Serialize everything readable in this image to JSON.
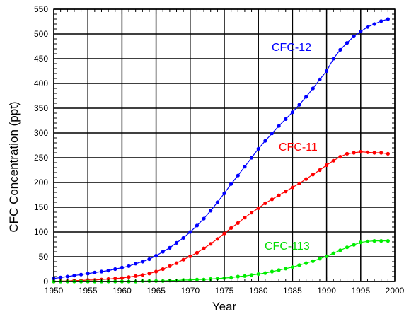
{
  "chart_data": {
    "type": "line",
    "title": "",
    "xlabel": "Year",
    "ylabel": "CFC Concentration (ppt)",
    "xlim": [
      1950,
      2000
    ],
    "ylim": [
      0,
      550
    ],
    "x_ticks": [
      "1950",
      "1955",
      "1960",
      "1965",
      "1970",
      "1975",
      "1980",
      "1985",
      "1990",
      "1995",
      "2000"
    ],
    "y_ticks": [
      "0",
      "50",
      "100",
      "150",
      "200",
      "250",
      "300",
      "350",
      "400",
      "450",
      "500",
      "550"
    ],
    "grid": true,
    "legend": "inline labels",
    "series": [
      {
        "name": "CFC-12",
        "color": "#0000ff",
        "x": [
          1950,
          1951,
          1952,
          1953,
          1954,
          1955,
          1956,
          1957,
          1958,
          1959,
          1960,
          1961,
          1962,
          1963,
          1964,
          1965,
          1966,
          1967,
          1968,
          1969,
          1970,
          1971,
          1972,
          1973,
          1974,
          1975,
          1976,
          1977,
          1978,
          1979,
          1980,
          1981,
          1982,
          1983,
          1984,
          1985,
          1986,
          1987,
          1988,
          1989,
          1990,
          1991,
          1992,
          1993,
          1994,
          1995,
          1996,
          1997,
          1998,
          1999
        ],
        "values": [
          6,
          8,
          10,
          12,
          14,
          16,
          18,
          20,
          22,
          25,
          28,
          31,
          36,
          40,
          45,
          52,
          60,
          68,
          78,
          88,
          100,
          113,
          127,
          143,
          160,
          178,
          197,
          214,
          232,
          250,
          268,
          284,
          299,
          314,
          328,
          342,
          357,
          373,
          390,
          408,
          425,
          450,
          468,
          482,
          495,
          505,
          514,
          520,
          526,
          530
        ]
      },
      {
        "name": "CFC-11",
        "color": "#ff0000",
        "x": [
          1950,
          1951,
          1952,
          1953,
          1954,
          1955,
          1956,
          1957,
          1958,
          1959,
          1960,
          1961,
          1962,
          1963,
          1964,
          1965,
          1966,
          1967,
          1968,
          1969,
          1970,
          1971,
          1972,
          1973,
          1974,
          1975,
          1976,
          1977,
          1978,
          1979,
          1980,
          1981,
          1982,
          1983,
          1984,
          1985,
          1986,
          1987,
          1988,
          1989,
          1990,
          1991,
          1992,
          1993,
          1994,
          1995,
          1996,
          1997,
          1998,
          1999
        ],
        "values": [
          0,
          1,
          1,
          2,
          2,
          3,
          3,
          4,
          5,
          6,
          7,
          9,
          11,
          13,
          16,
          20,
          25,
          31,
          37,
          44,
          51,
          58,
          67,
          76,
          86,
          97,
          108,
          118,
          129,
          139,
          148,
          158,
          166,
          174,
          182,
          190,
          198,
          207,
          216,
          225,
          235,
          244,
          252,
          258,
          260,
          262,
          261,
          260,
          260,
          258
        ]
      },
      {
        "name": "CFC-113",
        "color": "#00ee00",
        "x": [
          1950,
          1951,
          1952,
          1953,
          1954,
          1955,
          1956,
          1957,
          1958,
          1959,
          1960,
          1961,
          1962,
          1963,
          1964,
          1965,
          1966,
          1967,
          1968,
          1969,
          1970,
          1971,
          1972,
          1973,
          1974,
          1975,
          1976,
          1977,
          1978,
          1979,
          1980,
          1981,
          1982,
          1983,
          1984,
          1985,
          1986,
          1987,
          1988,
          1989,
          1990,
          1991,
          1992,
          1993,
          1994,
          1995,
          1996,
          1997,
          1998,
          1999
        ],
        "values": [
          0,
          0,
          0,
          0,
          0,
          0,
          0,
          0,
          0,
          0,
          0,
          0,
          0,
          1,
          1,
          1,
          1,
          2,
          2,
          3,
          3,
          4,
          4,
          5,
          6,
          7,
          8,
          10,
          11,
          13,
          15,
          17,
          20,
          23,
          26,
          29,
          33,
          37,
          41,
          46,
          51,
          57,
          63,
          69,
          74,
          79,
          81,
          82,
          82,
          82
        ]
      }
    ]
  }
}
